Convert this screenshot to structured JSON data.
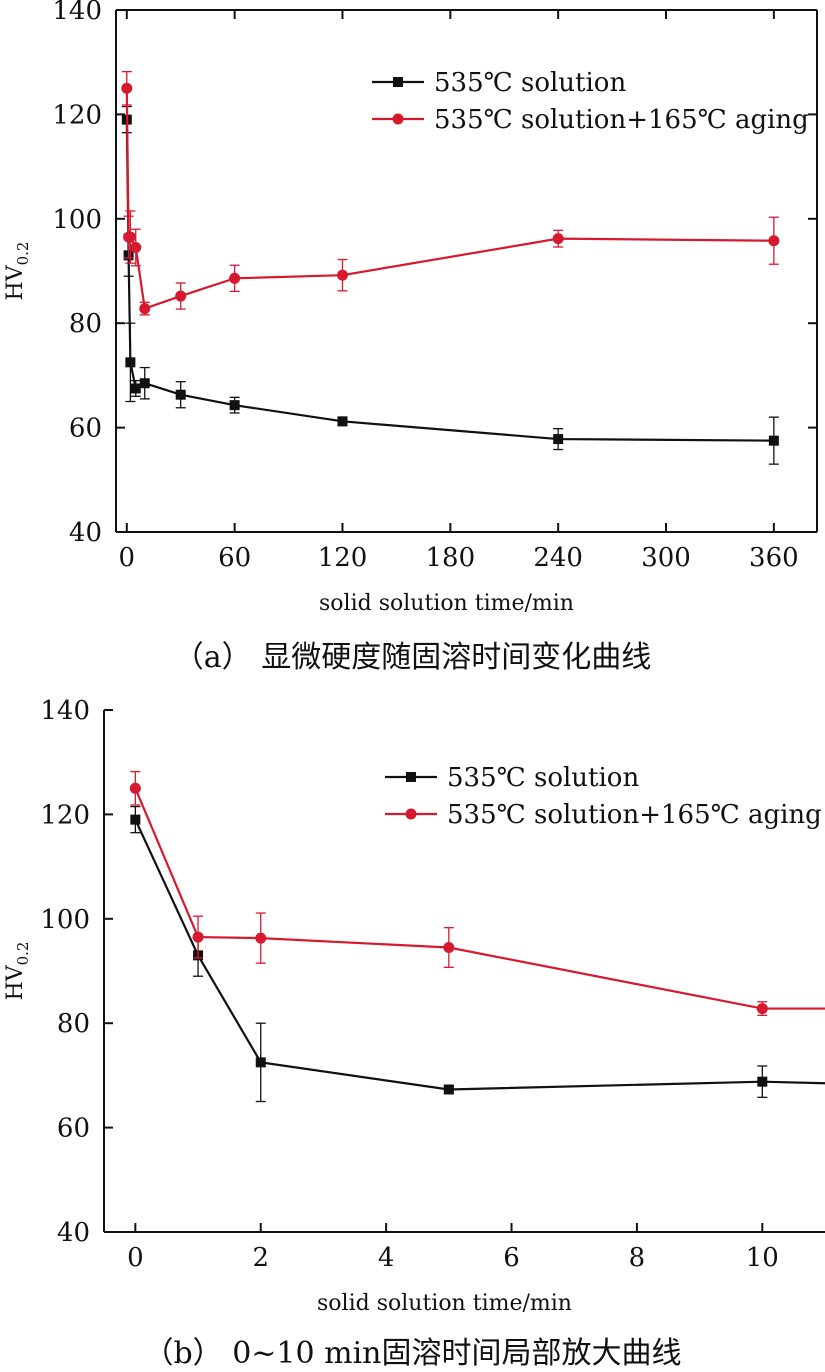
{
  "captions": {
    "a": "（a） 显微硬度随固溶时间变化曲线",
    "b": "（b） 0~10 min固溶时间局部放大曲线"
  },
  "colors": {
    "black": "#111111",
    "red": "#d6192e"
  },
  "chart_data": [
    {
      "type": "line",
      "xlabel": "solid solution time/min",
      "ylabel": "HV",
      "ylabel_sub": "0.2",
      "xlim": [
        -6,
        384
      ],
      "ylim": [
        40,
        140
      ],
      "xticks": [
        0,
        60,
        120,
        180,
        240,
        300,
        360
      ],
      "yticks": [
        40,
        60,
        80,
        100,
        120,
        140
      ],
      "legend_position": "top-right",
      "series": [
        {
          "name": "535℃ solution",
          "color": "#111111",
          "marker": "square",
          "x": [
            0,
            1,
            2,
            5,
            10,
            30,
            60,
            120,
            240,
            360
          ],
          "y": [
            119,
            93,
            72.5,
            67.5,
            68.5,
            66.3,
            64.3,
            61.2,
            57.8,
            57.5
          ],
          "err": [
            2.5,
            4,
            7.5,
            1.5,
            3,
            2.5,
            1.5,
            0.8,
            2,
            4.5
          ]
        },
        {
          "name": "535℃ solution+165℃ aging",
          "color": "#d6192e",
          "marker": "circle",
          "x": [
            0,
            1,
            2,
            5,
            10,
            30,
            60,
            120,
            240,
            360
          ],
          "y": [
            125,
            96.5,
            96.5,
            94.5,
            82.8,
            85.2,
            88.6,
            89.2,
            96.2,
            95.8
          ],
          "err": [
            3.2,
            4,
            5,
            3.5,
            1.2,
            2.5,
            2.5,
            3,
            1.6,
            4.5
          ]
        }
      ]
    },
    {
      "type": "line",
      "xlabel": "solid solution time/min",
      "ylabel": "HV",
      "ylabel_sub": "0.2",
      "xlim": [
        -0.5,
        11
      ],
      "ylim": [
        40,
        140
      ],
      "xticks": [
        0,
        2,
        4,
        6,
        8,
        10
      ],
      "yticks": [
        40,
        60,
        80,
        100,
        120,
        140
      ],
      "legend_position": "top-right",
      "series": [
        {
          "name": "535℃ solution",
          "color": "#111111",
          "marker": "square",
          "x": [
            0,
            1,
            2,
            5,
            10,
            11
          ],
          "y": [
            119,
            93,
            72.5,
            67.3,
            68.8,
            68.5
          ],
          "err": [
            2.5,
            4,
            7.5,
            0.6,
            3,
            null
          ]
        },
        {
          "name": "535℃ solution+165℃ aging",
          "color": "#d6192e",
          "marker": "circle",
          "x": [
            0,
            1,
            2,
            5,
            10,
            11
          ],
          "y": [
            125,
            96.5,
            96.3,
            94.5,
            82.8,
            82.8
          ],
          "err": [
            3.2,
            4,
            4.8,
            3.8,
            1.3,
            null
          ]
        }
      ]
    }
  ]
}
